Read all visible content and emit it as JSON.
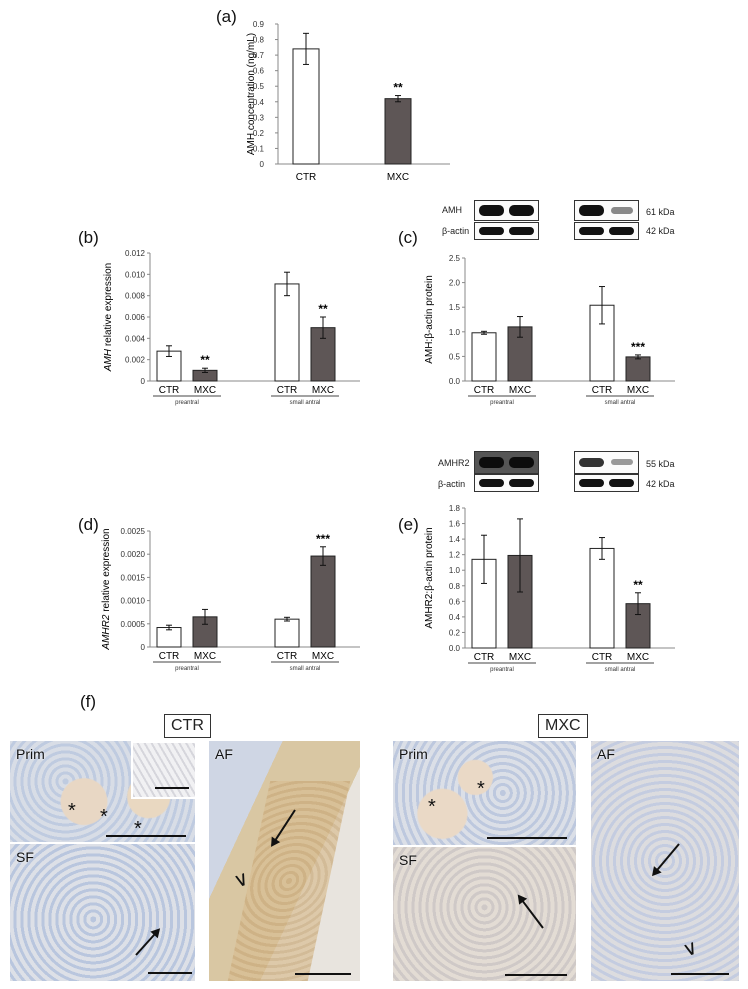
{
  "panels": {
    "a": "(a)",
    "b": "(b)",
    "c": "(c)",
    "d": "(d)",
    "e": "(e)",
    "f": "(f)"
  },
  "chart_data": [
    {
      "id": "a",
      "type": "bar",
      "ylabel": "AMH concentration (ng/mL)",
      "ylim": [
        0,
        0.9
      ],
      "ticks": [
        "0",
        "0.1",
        "0.2",
        "0.3",
        "0.4",
        "0.5",
        "0.6",
        "0.7",
        "0.8",
        "0.9"
      ],
      "categories": [
        "CTR",
        "MXC"
      ],
      "values": [
        0.74,
        0.42
      ],
      "errors": [
        0.1,
        0.02
      ],
      "sig": [
        "",
        "**"
      ],
      "groups": []
    },
    {
      "id": "b",
      "type": "bar",
      "ylabel": "AMH relative expression",
      "ylim": [
        0,
        0.012
      ],
      "ticks": [
        "0",
        "0.002",
        "0.004",
        "0.006",
        "0.008",
        "0.010",
        "0.012"
      ],
      "categories": [
        "CTR",
        "MXC",
        "CTR",
        "MXC"
      ],
      "values": [
        0.0028,
        0.001,
        0.0091,
        0.005
      ],
      "errors": [
        0.0005,
        0.0002,
        0.0011,
        0.001
      ],
      "sig": [
        "",
        "**",
        "",
        "**"
      ],
      "groups": [
        "preantral",
        "small antral"
      ]
    },
    {
      "id": "c",
      "type": "bar",
      "ylabel": "AMH:β-actin protein",
      "ylim": [
        0,
        2.5
      ],
      "ticks": [
        "0.0",
        "0.5",
        "1.0",
        "1.5",
        "2.0",
        "2.5"
      ],
      "categories": [
        "CTR",
        "MXC",
        "CTR",
        "MXC"
      ],
      "values": [
        0.98,
        1.1,
        1.54,
        0.49
      ],
      "errors": [
        0.03,
        0.21,
        0.38,
        0.04
      ],
      "sig": [
        "",
        "",
        "",
        "***"
      ],
      "groups": [
        "preantral",
        "small antral"
      ]
    },
    {
      "id": "d",
      "type": "bar",
      "ylabel": "AMHR2 relative expression",
      "ylim": [
        0,
        0.0025
      ],
      "ticks": [
        "0",
        "0.0005",
        "0.0010",
        "0.0015",
        "0.0020",
        "0.0025"
      ],
      "categories": [
        "CTR",
        "MXC",
        "CTR",
        "MXC"
      ],
      "values": [
        0.00042,
        0.00065,
        0.0006,
        0.00196
      ],
      "errors": [
        5e-05,
        0.00016,
        4e-05,
        0.0002
      ],
      "sig": [
        "",
        "",
        "",
        "***"
      ],
      "groups": [
        "preantral",
        "small antral"
      ]
    },
    {
      "id": "e",
      "type": "bar",
      "ylabel": "AMHR2:β-actin protein",
      "ylim": [
        0,
        1.8
      ],
      "ticks": [
        "0.0",
        "0.2",
        "0.4",
        "0.6",
        "0.8",
        "1.0",
        "1.2",
        "1.4",
        "1.6",
        "1.8"
      ],
      "categories": [
        "CTR",
        "MXC",
        "CTR",
        "MXC"
      ],
      "values": [
        1.14,
        1.19,
        1.28,
        0.57
      ],
      "errors": [
        0.31,
        0.47,
        0.14,
        0.14
      ],
      "sig": [
        "",
        "",
        "",
        "**"
      ],
      "groups": [
        "preantral",
        "small antral"
      ]
    }
  ],
  "colors": {
    "ctr": "#ffffff",
    "mxc": "#5e5656",
    "axis": "#888888"
  },
  "blots": {
    "c": {
      "protein": "AMH",
      "protein_kda": "61 kDa",
      "control": "β-actin",
      "control_kda": "42 kDa"
    },
    "e": {
      "protein": "AMHR2",
      "protein_kda": "55 kDa",
      "control": "β-actin",
      "control_kda": "42 kDa"
    }
  },
  "histology": {
    "ctr_label": "CTR",
    "mxc_label": "MXC",
    "ctr_prim": "Prim",
    "ctr_sf": "SF",
    "ctr_af": "AF",
    "mxc_prim": "Prim",
    "mxc_sf": "SF",
    "mxc_af": "AF",
    "asterisk": "*"
  }
}
